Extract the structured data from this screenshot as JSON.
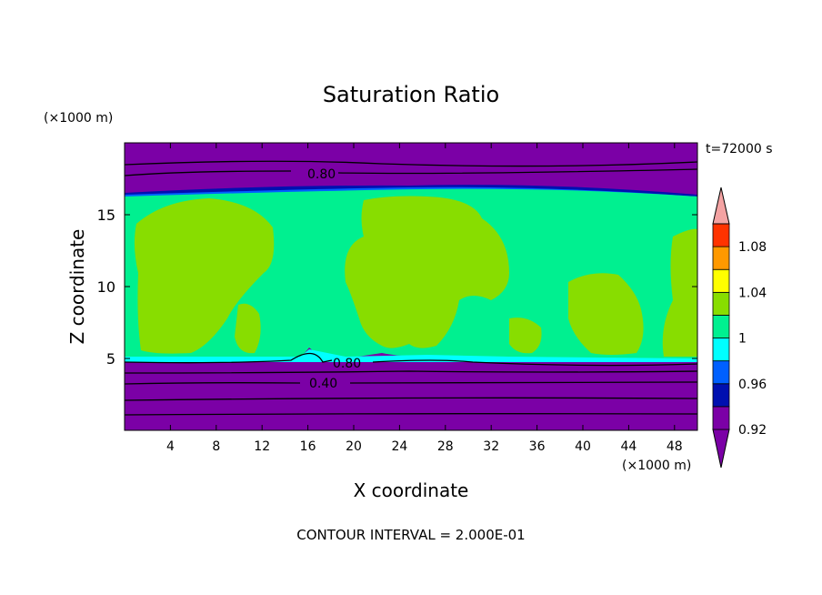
{
  "chart_data": {
    "type": "heatmap",
    "title": "Saturation Ratio",
    "xlabel": "X coordinate",
    "ylabel": "Z coordinate",
    "x_unit": "(×1000 m)",
    "y_unit": "(×1000 m)",
    "time_label": "t=72000 s",
    "footer": "CONTOUR INTERVAL = 2.000E-01",
    "xlim": [
      0,
      50
    ],
    "ylim": [
      0,
      20
    ],
    "x_ticks": [
      4,
      8,
      12,
      16,
      20,
      24,
      28,
      32,
      36,
      40,
      44,
      48
    ],
    "y_ticks": [
      5,
      10,
      15
    ],
    "colorbar": {
      "levels": [
        0.92,
        0.94,
        0.96,
        0.98,
        1.0,
        1.02,
        1.04,
        1.06,
        1.08,
        1.1
      ],
      "labels": [
        {
          "value": 0.92,
          "text": "0.92"
        },
        {
          "value": 0.96,
          "text": "0.96"
        },
        {
          "value": 1.0,
          "text": "1"
        },
        {
          "value": 1.04,
          "text": "1.04"
        },
        {
          "value": 1.08,
          "text": "1.08"
        }
      ],
      "under_color": "#7b00a6",
      "over_color": "#f4a3a3",
      "band_colors": [
        "#7b00a6",
        "#0010b0",
        "#0060ff",
        "#00ffff",
        "#00f090",
        "#88dd00",
        "#ffff00",
        "#ff9900",
        "#ff3300",
        "#ee0000"
      ]
    },
    "regions": {
      "top_dry_layer_z": [
        16.5,
        20
      ],
      "cloud_band_z": [
        5,
        16.3
      ],
      "bottom_dry_layer_z": [
        0,
        4.8
      ]
    },
    "contour_labels": [
      {
        "text": "0.80",
        "x": 17.5,
        "z": 17.5
      },
      {
        "text": "0.80",
        "x": 19.5,
        "z": 4.7
      },
      {
        "text": "0.40",
        "x": 17.5,
        "z": 3.3
      }
    ]
  }
}
